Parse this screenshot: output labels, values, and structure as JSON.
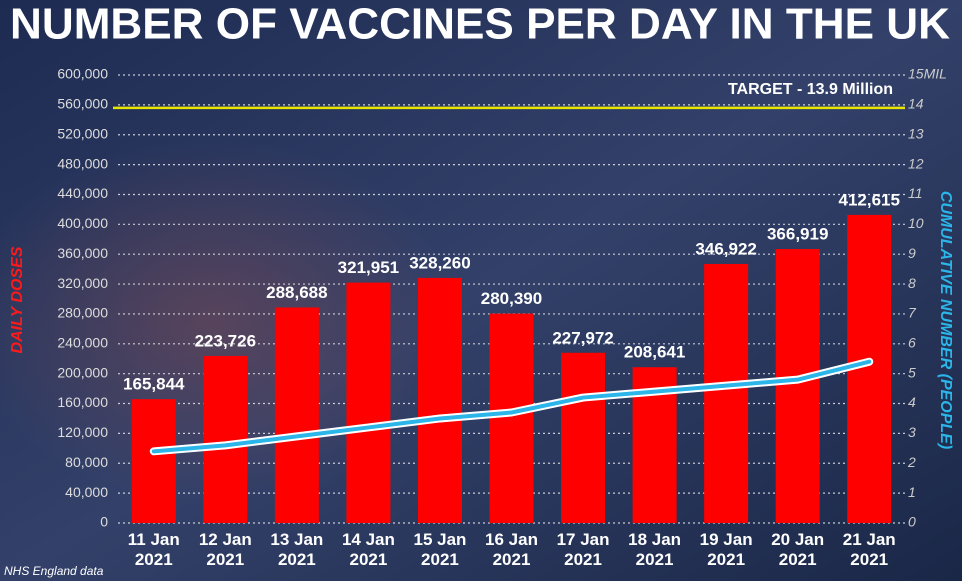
{
  "chart_data": {
    "type": "bar",
    "title": "NUMBER OF VACCINES PER DAY IN THE UK",
    "ylabel": "DAILY DOSES",
    "y2label": "CUMULATIVE NUMBER (PEOPLE)",
    "source": "NHS England data",
    "categories": [
      "11 Jan 2021",
      "12 Jan 2021",
      "13 Jan 2021",
      "14 Jan 2021",
      "15 Jan 2021",
      "16 Jan 2021",
      "17 Jan 2021",
      "18 Jan 2021",
      "19 Jan 2021",
      "20 Jan 2021",
      "21 Jan 2021"
    ],
    "values": [
      165844,
      223726,
      288688,
      321951,
      328260,
      280390,
      227972,
      208641,
      346922,
      366919,
      412615
    ],
    "value_labels": [
      "165,844",
      "223,726",
      "288,688",
      "321,951",
      "328,260",
      "280,390",
      "227,972",
      "208,641",
      "346,922",
      "366,919",
      "412,615"
    ],
    "color": "#ff0000",
    "line": {
      "values": [
        2.4,
        2.6,
        2.9,
        3.2,
        3.5,
        3.7,
        4.2,
        4.4,
        4.6,
        4.8,
        5.4
      ],
      "color": "#2bb5e8",
      "axis": "y2"
    },
    "target": {
      "label": "TARGET - 13.9 Million",
      "value": 13.9,
      "color": "#e8e600",
      "axis": "y2"
    },
    "ylim": [
      0,
      600000
    ],
    "yticks": [
      0,
      {
        "value": 40000,
        "label": "40,000"
      },
      {
        "value": 80000,
        "label": "80,000"
      },
      {
        "value": 120000,
        "label": "120,000"
      },
      {
        "value": 160000,
        "label": "160,000"
      },
      {
        "value": 200000,
        "label": "200,000"
      },
      {
        "value": 240000,
        "label": "240,000"
      },
      {
        "value": 280000,
        "label": "280,000"
      },
      {
        "value": 320000,
        "label": "320,000"
      },
      {
        "value": 360000,
        "label": "360,000"
      },
      {
        "value": 400000,
        "label": "400,000"
      },
      {
        "value": 440000,
        "label": "440,000"
      },
      {
        "value": 480000,
        "label": "480,000"
      },
      {
        "value": 520000,
        "label": "520,000"
      },
      {
        "value": 560000,
        "label": "560,000"
      },
      {
        "value": 600000,
        "label": "600,000"
      }
    ],
    "y2lim": [
      0,
      15
    ],
    "y2ticks": [
      0,
      1,
      2,
      3,
      4,
      5,
      6,
      7,
      8,
      9,
      10,
      11,
      12,
      13,
      14,
      {
        "value": 15,
        "label": "15MIL"
      }
    ],
    "grid": true
  }
}
